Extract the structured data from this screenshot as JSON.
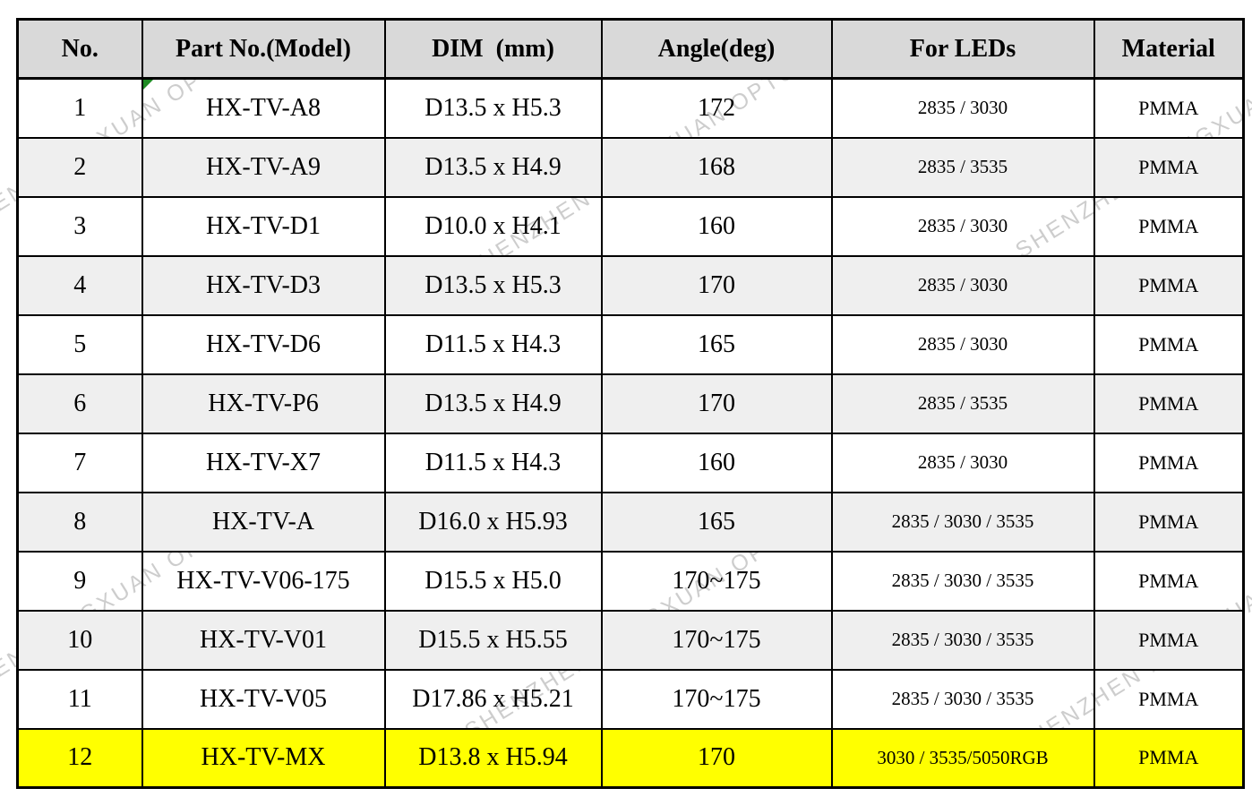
{
  "watermark": {
    "text": "SHENZHEN HONGXUAN OPTO"
  },
  "colors": {
    "header_bg": "#d9d9d9",
    "stripe_bg": "#efefef",
    "highlight_bg": "#ffff00",
    "watermark": "#bdbdbd",
    "corner_triangle": "#1f8b24",
    "border": "#000000"
  },
  "table": {
    "headers": [
      "No.",
      "Part No.(Model)",
      "DIM  (mm)",
      "Angle(deg)",
      "For LEDs",
      "Material"
    ],
    "rows": [
      {
        "no": "1",
        "part": "HX-TV-A8",
        "dim": "D13.5 x H5.3",
        "angle": "172",
        "leds": "2835 / 3030",
        "material": "PMMA",
        "highlight": false
      },
      {
        "no": "2",
        "part": "HX-TV-A9",
        "dim": "D13.5 x H4.9",
        "angle": "168",
        "leds": "2835 / 3535",
        "material": "PMMA",
        "highlight": false
      },
      {
        "no": "3",
        "part": "HX-TV-D1",
        "dim": "D10.0 x H4.1",
        "angle": "160",
        "leds": "2835 / 3030",
        "material": "PMMA",
        "highlight": false
      },
      {
        "no": "4",
        "part": "HX-TV-D3",
        "dim": "D13.5 x H5.3",
        "angle": "170",
        "leds": "2835 / 3030",
        "material": "PMMA",
        "highlight": false
      },
      {
        "no": "5",
        "part": "HX-TV-D6",
        "dim": "D11.5 x H4.3",
        "angle": "165",
        "leds": "2835 / 3030",
        "material": "PMMA",
        "highlight": false
      },
      {
        "no": "6",
        "part": "HX-TV-P6",
        "dim": "D13.5 x H4.9",
        "angle": "170",
        "leds": "2835 / 3535",
        "material": "PMMA",
        "highlight": false
      },
      {
        "no": "7",
        "part": "HX-TV-X7",
        "dim": "D11.5 x H4.3",
        "angle": "160",
        "leds": "2835 / 3030",
        "material": "PMMA",
        "highlight": false
      },
      {
        "no": "8",
        "part": "HX-TV-A",
        "dim": "D16.0 x H5.93",
        "angle": "165",
        "leds": "2835 / 3030 / 3535",
        "material": "PMMA",
        "highlight": false
      },
      {
        "no": "9",
        "part": "HX-TV-V06-175",
        "dim": "D15.5 x H5.0",
        "angle": "170~175",
        "leds": "2835 / 3030 / 3535",
        "material": "PMMA",
        "highlight": false
      },
      {
        "no": "10",
        "part": "HX-TV-V01",
        "dim": "D15.5 x H5.55",
        "angle": "170~175",
        "leds": "2835 / 3030 / 3535",
        "material": "PMMA",
        "highlight": false
      },
      {
        "no": "11",
        "part": "HX-TV-V05",
        "dim": "D17.86 x H5.21",
        "angle": "170~175",
        "leds": "2835 / 3030 / 3535",
        "material": "PMMA",
        "highlight": false
      },
      {
        "no": "12",
        "part": "HX-TV-MX",
        "dim": "D13.8 x H5.94",
        "angle": "170",
        "leds": "3030 / 3535/5050RGB",
        "material": "PMMA",
        "highlight": true
      }
    ]
  }
}
